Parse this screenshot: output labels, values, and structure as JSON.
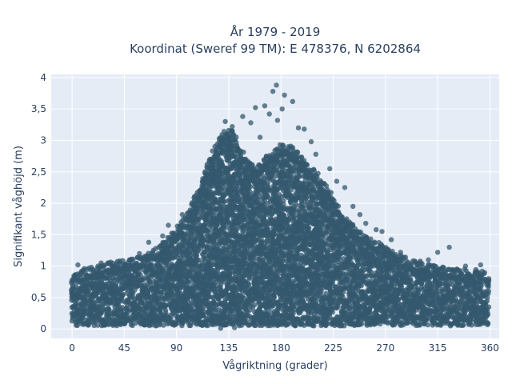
{
  "chart_data": {
    "type": "scatter",
    "title_line1": "År 1979 - 2019",
    "title_line2": "Koordinat (Sweref 99 TM): E 478376, N 6202864",
    "xlabel": "Vågriktning (grader)",
    "ylabel": "Signifikant våghöjd (m)",
    "xlim": [
      -18,
      368
    ],
    "ylim": [
      -0.15,
      4.05
    ],
    "xticks": [
      0,
      45,
      90,
      135,
      180,
      225,
      270,
      315,
      360
    ],
    "xtick_labels": [
      "0",
      "45",
      "90",
      "135",
      "180",
      "225",
      "270",
      "315",
      "360"
    ],
    "yticks": [
      0,
      0.5,
      1,
      1.5,
      2,
      2.5,
      3,
      3.5,
      4
    ],
    "ytick_labels": [
      "0",
      "0,5",
      "1",
      "1,5",
      "2",
      "2,5",
      "3",
      "3,5",
      "4"
    ],
    "grid": true,
    "marker_color": "#34586e",
    "plot_bg": "#e5ecf6",
    "envelope": {
      "x": [
        0,
        10,
        20,
        30,
        45,
        60,
        70,
        80,
        90,
        100,
        110,
        120,
        130,
        135,
        140,
        150,
        160,
        170,
        180,
        190,
        200,
        210,
        220,
        230,
        240,
        250,
        260,
        270,
        280,
        290,
        300,
        315,
        330,
        345,
        360
      ],
      "top": [
        0.75,
        0.85,
        0.9,
        0.95,
        1.0,
        1.05,
        1.15,
        1.3,
        1.5,
        1.75,
        2.2,
        2.7,
        3.05,
        3.1,
        3.0,
        2.6,
        2.5,
        2.7,
        2.85,
        2.8,
        2.6,
        2.4,
        2.15,
        1.85,
        1.6,
        1.4,
        1.3,
        1.25,
        1.1,
        1.0,
        0.95,
        0.9,
        0.85,
        0.85,
        0.8
      ],
      "bottom": 0.05
    },
    "outliers": [
      {
        "x": 176,
        "y": 3.88
      },
      {
        "x": 173,
        "y": 3.78
      },
      {
        "x": 183,
        "y": 3.72
      },
      {
        "x": 166,
        "y": 3.55
      },
      {
        "x": 158,
        "y": 3.52
      },
      {
        "x": 147,
        "y": 3.38
      },
      {
        "x": 132,
        "y": 3.3
      },
      {
        "x": 190,
        "y": 3.62
      },
      {
        "x": 181,
        "y": 3.5
      },
      {
        "x": 170,
        "y": 3.42
      },
      {
        "x": 177,
        "y": 3.32
      },
      {
        "x": 195,
        "y": 3.2
      },
      {
        "x": 200,
        "y": 3.18
      },
      {
        "x": 154,
        "y": 3.28
      },
      {
        "x": 138,
        "y": 3.22
      },
      {
        "x": 162,
        "y": 3.05
      },
      {
        "x": 206,
        "y": 2.98
      },
      {
        "x": 210,
        "y": 2.78
      },
      {
        "x": 222,
        "y": 2.55
      },
      {
        "x": 228,
        "y": 2.35
      },
      {
        "x": 235,
        "y": 2.25
      },
      {
        "x": 242,
        "y": 1.95
      },
      {
        "x": 248,
        "y": 1.82
      },
      {
        "x": 253,
        "y": 1.68
      },
      {
        "x": 262,
        "y": 1.58
      },
      {
        "x": 267,
        "y": 1.55
      },
      {
        "x": 275,
        "y": 1.42
      },
      {
        "x": 283,
        "y": 1.22
      },
      {
        "x": 300,
        "y": 1.08
      },
      {
        "x": 307,
        "y": 1.1
      },
      {
        "x": 325,
        "y": 1.3
      },
      {
        "x": 315,
        "y": 1.22
      },
      {
        "x": 339,
        "y": 1.0
      },
      {
        "x": 352,
        "y": 1.02
      },
      {
        "x": 120,
        "y": 2.45
      },
      {
        "x": 112,
        "y": 2.28
      },
      {
        "x": 103,
        "y": 1.98
      },
      {
        "x": 95,
        "y": 1.82
      },
      {
        "x": 83,
        "y": 1.65
      },
      {
        "x": 78,
        "y": 1.48
      },
      {
        "x": 66,
        "y": 1.38
      },
      {
        "x": 58,
        "y": 1.2
      },
      {
        "x": 50,
        "y": 1.1
      },
      {
        "x": 25,
        "y": 1.05
      },
      {
        "x": 5,
        "y": 1.02
      },
      {
        "x": 140,
        "y": 0.02
      },
      {
        "x": 128,
        "y": 0.01
      }
    ]
  }
}
